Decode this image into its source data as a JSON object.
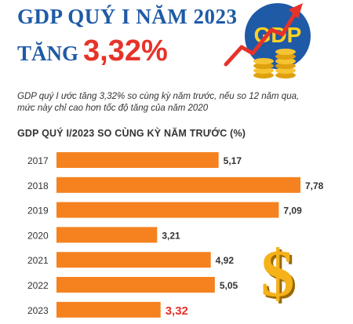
{
  "header": {
    "title_line1": "GDP QUÝ I NĂM 2023",
    "title_line2_lead": "TĂNG",
    "title_line2_value": "3,32%"
  },
  "logo": {
    "text": "GDP",
    "icon": "gdp-growth-arrow-coins-icon"
  },
  "description": {
    "line1": "GDP quý I ước tăng 3,32% so cùng kỳ năm trước, nếu so 12 năm qua,",
    "line2": "mức này chỉ cao hơn tốc độ tăng của năm 2020"
  },
  "chart_subtitle": "GDP QUÝ I/2023 SO CÙNG KỲ NĂM TRƯỚC (%)",
  "decor": {
    "dollar_icon": "dollar-sign-icon"
  },
  "colors": {
    "bar": "#f5821f",
    "highlight": "#e6332a",
    "title": "#1f5aa6",
    "label": "#333333"
  },
  "chart_data": {
    "type": "bar",
    "orientation": "horizontal",
    "categories": [
      "2017",
      "2018",
      "2019",
      "2020",
      "2021",
      "2022",
      "2023"
    ],
    "values": [
      5.17,
      7.78,
      7.09,
      3.21,
      4.92,
      5.05,
      3.32
    ],
    "value_labels": [
      "5,17",
      "7,78",
      "7,09",
      "3,21",
      "4,92",
      "5,05",
      "3,32"
    ],
    "highlight_category": "2023",
    "title": "GDP QUÝ I/2023 SO CÙNG KỲ NĂM TRƯỚC (%)",
    "xlabel": "",
    "ylabel": "",
    "xlim": [
      0,
      8
    ],
    "grid": false,
    "legend": "none"
  }
}
